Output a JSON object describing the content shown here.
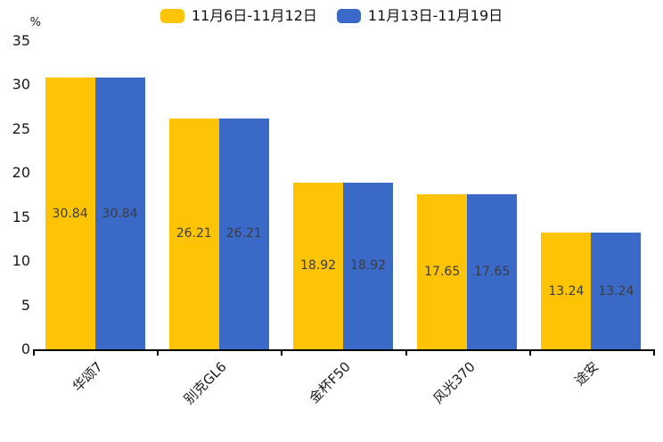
{
  "chart_data": {
    "type": "bar",
    "categories": [
      "华颂7",
      "别克GL6",
      "金杯F50",
      "风光370",
      "途安"
    ],
    "series": [
      {
        "name": "11月6日-11月12日",
        "color": "#FCC404",
        "values": [
          30.84,
          26.21,
          18.92,
          17.65,
          13.24
        ]
      },
      {
        "name": "11月13日-11月19日",
        "color": "#3A69C8",
        "values": [
          30.84,
          26.21,
          18.92,
          17.65,
          13.24
        ]
      }
    ],
    "ylabel": "%",
    "ylim": [
      0,
      35
    ],
    "ytick_step": 5,
    "legend_position": "top",
    "grid": false,
    "value_label_position": "inside-center",
    "value_label_decimals": 2
  },
  "colors": {
    "background": "#ffffff",
    "axis": "#000000",
    "tick_text": "#1a1a1a",
    "value_label_text": "#3c3c3c"
  }
}
